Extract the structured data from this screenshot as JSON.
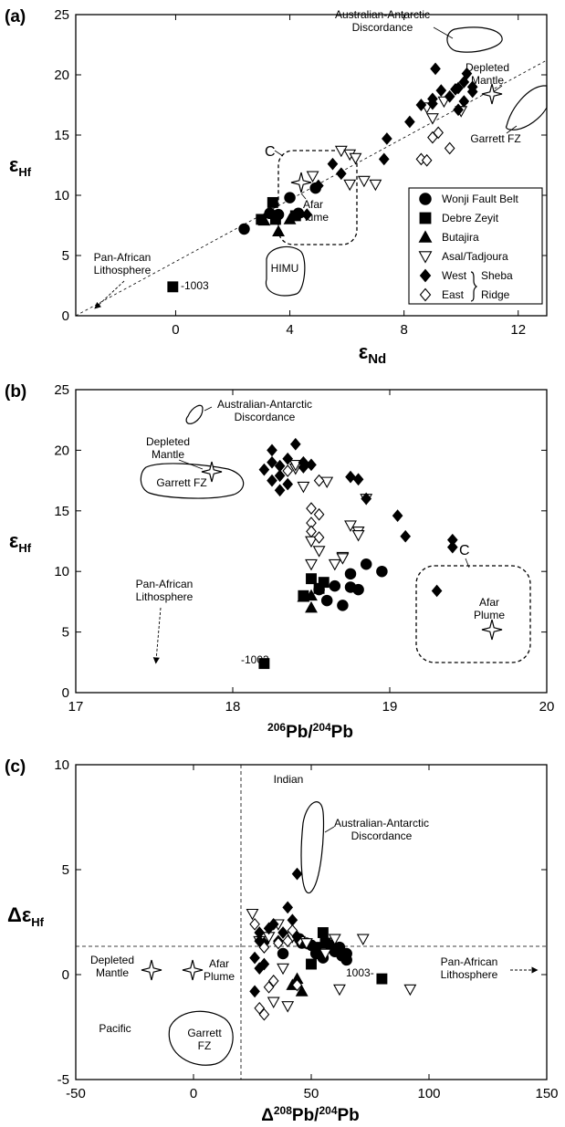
{
  "chart_data": [
    {
      "type": "scatter",
      "panel": "a",
      "panel_label": "(a)",
      "xlabel": "εNd",
      "ylabel": "εHf",
      "xlim": [
        -3.5,
        13
      ],
      "ylim": [
        0,
        25
      ],
      "xticks": [
        0,
        4,
        8,
        12
      ],
      "yticks": [
        0,
        5,
        10,
        15,
        20,
        25
      ],
      "grid": false,
      "legend_position": "bottom-right",
      "legend": [
        "Wonji Fault Belt",
        "Debre Zeyit",
        "Butajira",
        "Asal/Tadjoura",
        "West",
        "East",
        "Sheba",
        "Ridge"
      ],
      "series": [
        {
          "name": "Wonji Fault Belt",
          "marker": "circle",
          "fill": "#000000",
          "points": [
            [
              2.4,
              7.2
            ],
            [
              3.3,
              8.5
            ],
            [
              3.6,
              8.4
            ],
            [
              4.0,
              9.8
            ],
            [
              4.3,
              8.5
            ],
            [
              4.9,
              10.6
            ]
          ]
        },
        {
          "name": "Debre Zeyit",
          "marker": "square",
          "fill": "#000000",
          "points": [
            [
              3.0,
              8.0
            ],
            [
              3.4,
              9.4
            ],
            [
              3.5,
              8.0
            ],
            [
              4.2,
              8.3
            ],
            [
              -0.1,
              2.4
            ]
          ]
        },
        {
          "name": "Butajira",
          "marker": "triangle-up",
          "fill": "#000000",
          "points": [
            [
              3.1,
              7.9
            ],
            [
              3.6,
              7.0
            ],
            [
              4.0,
              8.0
            ]
          ]
        },
        {
          "name": "Asal/Tadjoura",
          "marker": "triangle-down",
          "fill": "#ffffff",
          "points": [
            [
              4.8,
              11.6
            ],
            [
              5.8,
              13.7
            ],
            [
              6.1,
              13.4
            ],
            [
              6.3,
              13.1
            ],
            [
              6.1,
              10.9
            ],
            [
              6.6,
              11.2
            ],
            [
              7.0,
              10.9
            ],
            [
              8.8,
              17.3
            ],
            [
              9.0,
              16.4
            ],
            [
              9.4,
              17.8
            ],
            [
              10.0,
              17.0
            ]
          ]
        },
        {
          "name": "West",
          "marker": "diamond",
          "fill": "#000000",
          "points": [
            [
              4.6,
              8.4
            ],
            [
              5.0,
              10.8
            ],
            [
              5.5,
              12.6
            ],
            [
              5.8,
              11.8
            ],
            [
              7.3,
              13.0
            ],
            [
              7.4,
              14.7
            ],
            [
              8.2,
              16.1
            ],
            [
              8.6,
              17.5
            ],
            [
              9.0,
              18.0
            ],
            [
              9.3,
              18.7
            ],
            [
              9.1,
              20.5
            ],
            [
              9.6,
              18.2
            ],
            [
              9.9,
              18.9
            ],
            [
              10.1,
              19.4
            ],
            [
              10.2,
              20.1
            ],
            [
              10.4,
              18.6
            ],
            [
              10.1,
              17.8
            ],
            [
              9.9,
              17.1
            ],
            [
              10.4,
              19.0
            ],
            [
              9.8,
              18.8
            ],
            [
              9.0,
              17.6
            ]
          ]
        },
        {
          "name": "East",
          "marker": "diamond",
          "fill": "#ffffff",
          "points": [
            [
              8.6,
              13.0
            ],
            [
              8.8,
              12.9
            ],
            [
              9.0,
              14.8
            ],
            [
              9.2,
              15.2
            ],
            [
              9.6,
              13.9
            ]
          ]
        }
      ],
      "annotations": [
        "Australian-Antarctic",
        "Discordance",
        "Depleted",
        "Mantle",
        "Garrett FZ",
        "C",
        "Afar",
        "Plume",
        "Pan-African",
        "Lithosphere",
        "HIMU",
        "-1003"
      ]
    },
    {
      "type": "scatter",
      "panel": "b",
      "panel_label": "(b)",
      "xlabel": "206Pb/204Pb",
      "ylabel": "εHf",
      "xlim": [
        17,
        20
      ],
      "ylim": [
        0,
        25
      ],
      "xticks": [
        17,
        18,
        19,
        20
      ],
      "yticks": [
        0,
        5,
        10,
        15,
        20,
        25
      ],
      "grid": false,
      "series": [
        {
          "name": "Wonji Fault Belt",
          "marker": "circle",
          "fill": "#000000",
          "points": [
            [
              18.55,
              8.5
            ],
            [
              18.6,
              7.6
            ],
            [
              18.65,
              8.8
            ],
            [
              18.7,
              7.2
            ],
            [
              18.75,
              8.7
            ],
            [
              18.75,
              9.8
            ],
            [
              18.8,
              8.5
            ],
            [
              18.85,
              10.6
            ],
            [
              18.95,
              10.0
            ]
          ]
        },
        {
          "name": "Debre Zeyit",
          "marker": "square",
          "fill": "#000000",
          "points": [
            [
              18.45,
              8.0
            ],
            [
              18.5,
              9.4
            ],
            [
              18.55,
              8.6
            ],
            [
              18.58,
              9.1
            ],
            [
              18.2,
              2.4
            ]
          ]
        },
        {
          "name": "Butajira",
          "marker": "triangle-up",
          "fill": "#000000",
          "points": [
            [
              18.45,
              7.9
            ],
            [
              18.5,
              7.0
            ],
            [
              18.5,
              8.0
            ]
          ]
        },
        {
          "name": "Asal/Tadjoura",
          "marker": "triangle-down",
          "fill": "#ffffff",
          "points": [
            [
              18.4,
              18.5
            ],
            [
              18.4,
              18.8
            ],
            [
              18.6,
              17.4
            ],
            [
              18.45,
              17.0
            ],
            [
              18.5,
              10.6
            ],
            [
              18.55,
              11.7
            ],
            [
              18.5,
              12.5
            ],
            [
              18.7,
              11.2
            ],
            [
              18.75,
              13.8
            ],
            [
              18.8,
              13.3
            ],
            [
              18.8,
              13.0
            ],
            [
              18.85,
              16.0
            ],
            [
              18.7,
              11.1
            ],
            [
              18.65,
              10.6
            ]
          ]
        },
        {
          "name": "West",
          "marker": "diamond",
          "fill": "#000000",
          "points": [
            [
              18.2,
              18.4
            ],
            [
              18.25,
              20.0
            ],
            [
              18.3,
              18.7
            ],
            [
              18.3,
              17.9
            ],
            [
              18.35,
              19.3
            ],
            [
              18.3,
              16.7
            ],
            [
              18.35,
              17.2
            ],
            [
              18.4,
              20.5
            ],
            [
              18.45,
              18.6
            ],
            [
              18.5,
              18.8
            ],
            [
              18.45,
              19.0
            ],
            [
              18.25,
              19.0
            ],
            [
              18.75,
              17.8
            ],
            [
              18.8,
              17.6
            ],
            [
              18.85,
              16.0
            ],
            [
              19.05,
              14.6
            ],
            [
              19.1,
              12.9
            ],
            [
              19.3,
              8.4
            ],
            [
              19.4,
              12.0
            ],
            [
              19.4,
              12.6
            ],
            [
              18.25,
              17.5
            ]
          ]
        },
        {
          "name": "East",
          "marker": "diamond",
          "fill": "#ffffff",
          "points": [
            [
              18.5,
              15.2
            ],
            [
              18.55,
              14.7
            ],
            [
              18.5,
              14.0
            ],
            [
              18.55,
              12.8
            ],
            [
              18.5,
              13.3
            ],
            [
              18.55,
              17.5
            ],
            [
              18.35,
              18.3
            ]
          ]
        }
      ],
      "annotations": [
        "Australian-Antarctic",
        "Discordance",
        "Depleted",
        "Mantle",
        "Garrett FZ",
        "C",
        "Afar",
        "Plume",
        "Pan-African",
        "Lithosphere",
        "-1003"
      ]
    },
    {
      "type": "scatter",
      "panel": "c",
      "panel_label": "(c)",
      "xlabel": "Δ208Pb/204Pb",
      "ylabel": "ΔεHf",
      "xlim": [
        -50,
        150
      ],
      "ylim": [
        -5,
        10
      ],
      "xticks": [
        -50,
        0,
        50,
        100,
        150
      ],
      "yticks": [
        -5,
        0,
        5,
        10
      ],
      "grid": false,
      "reference_lines": {
        "vertical_x": 20,
        "horizontal_y": 1
      },
      "series": [
        {
          "name": "Wonji Fault Belt",
          "marker": "circle",
          "fill": "#000000",
          "points": [
            [
              38,
              1.0
            ],
            [
              45,
              1.7
            ],
            [
              50,
              1.4
            ],
            [
              52,
              1.0
            ],
            [
              55,
              0.8
            ],
            [
              58,
              1.4
            ],
            [
              60,
              1.1
            ],
            [
              62,
              1.3
            ],
            [
              63,
              0.9
            ],
            [
              65,
              1.0
            ],
            [
              65,
              0.7
            ],
            [
              48,
              1.5
            ],
            [
              46,
              1.5
            ]
          ]
        },
        {
          "name": "Debre Zeyit",
          "marker": "square",
          "fill": "#000000",
          "points": [
            [
              50,
              0.5
            ],
            [
              52,
              1.3
            ],
            [
              55,
              2.0
            ],
            [
              56,
              1.5
            ],
            [
              80,
              -0.2
            ]
          ]
        },
        {
          "name": "Butajira",
          "marker": "triangle-up",
          "fill": "#000000",
          "points": [
            [
              42,
              -0.5
            ],
            [
              44,
              -0.2
            ],
            [
              46,
              -0.8
            ]
          ]
        },
        {
          "name": "Asal/Tadjoura",
          "marker": "triangle-down",
          "fill": "#ffffff",
          "points": [
            [
              25,
              2.9
            ],
            [
              28,
              1.6
            ],
            [
              32,
              1.8
            ],
            [
              36,
              2.4
            ],
            [
              38,
              0.3
            ],
            [
              42,
              1.8
            ],
            [
              45,
              1.6
            ],
            [
              48,
              1.5
            ],
            [
              56,
              1.0
            ],
            [
              60,
              1.7
            ],
            [
              72,
              1.7
            ],
            [
              62,
              -0.7
            ],
            [
              92,
              -0.7
            ],
            [
              40,
              -1.5
            ],
            [
              34,
              -1.3
            ]
          ]
        },
        {
          "name": "West",
          "marker": "diamond",
          "fill": "#000000",
          "points": [
            [
              26,
              0.8
            ],
            [
              26,
              -0.8
            ],
            [
              28,
              1.6
            ],
            [
              28,
              2.0
            ],
            [
              30,
              1.5
            ],
            [
              32,
              2.2
            ],
            [
              34,
              2.4
            ],
            [
              36,
              1.6
            ],
            [
              38,
              2.0
            ],
            [
              40,
              3.2
            ],
            [
              42,
              2.6
            ],
            [
              44,
              4.8
            ],
            [
              44,
              1.8
            ],
            [
              28,
              0.3
            ],
            [
              30,
              0.5
            ]
          ]
        },
        {
          "name": "East",
          "marker": "diamond",
          "fill": "#ffffff",
          "points": [
            [
              28,
              -1.6
            ],
            [
              30,
              -1.9
            ],
            [
              32,
              -0.6
            ],
            [
              34,
              -0.3
            ],
            [
              36,
              1.5
            ],
            [
              42,
              2.1
            ],
            [
              40,
              1.6
            ],
            [
              30,
              1.3
            ],
            [
              44,
              -0.5
            ],
            [
              26,
              2.4
            ]
          ]
        }
      ],
      "annotations": [
        "Indian",
        "Pacific",
        "Australian-Antarctic",
        "Discordance",
        "Depleted",
        "Mantle",
        "Afar",
        "Plume",
        "Garrett",
        "FZ",
        "Pan-African",
        "Lithosphere",
        "1003-"
      ]
    }
  ]
}
